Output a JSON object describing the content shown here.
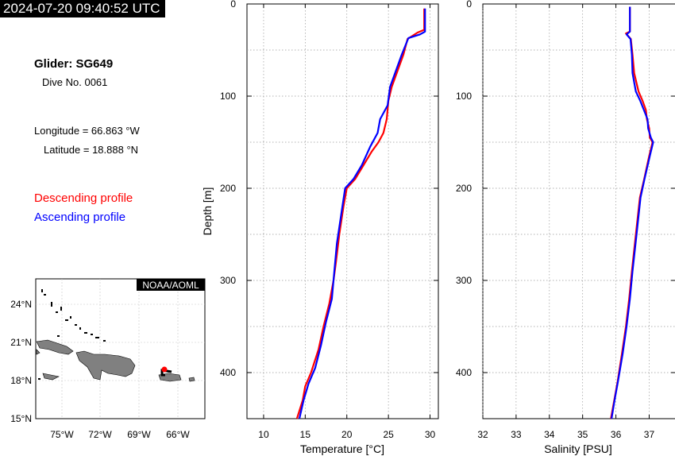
{
  "timestamp": "2024-07-20 09:40:52 UTC",
  "info": {
    "glider": "Glider: SG649",
    "dive": "Dive No. 0061",
    "longitude": "Longitude = 66.863 °W",
    "latitude": "Latitude = 18.888 °N"
  },
  "legend": {
    "descending": "Descending profile",
    "ascending": "Ascending profile"
  },
  "colors": {
    "descending": "#ff0000",
    "ascending": "#0000ff",
    "land": "#808080",
    "position": "#ff0000",
    "track": "#000000"
  },
  "map": {
    "badge": "NOAA/AOML",
    "lat_ticks": [
      "24°N",
      "21°N",
      "18°N",
      "15°N"
    ],
    "lon_ticks": [
      "75°W",
      "72°W",
      "69°W",
      "66°W"
    ]
  },
  "chart_data": [
    {
      "type": "line",
      "title": "",
      "xlabel": "Temperature [°C]",
      "ylabel": "Depth [m]",
      "xlim": [
        8,
        31
      ],
      "ylim": [
        450,
        0
      ],
      "xticks": [
        10,
        15,
        20,
        25,
        30
      ],
      "yticks": [
        0,
        100,
        200,
        300,
        400
      ],
      "grid": true,
      "series": [
        {
          "name": "Descending profile",
          "color": "#ff0000",
          "x": [
            29.3,
            29.3,
            28.5,
            27.3,
            26.8,
            26.0,
            25.4,
            25.0,
            24.8,
            24.4,
            23.8,
            23.0,
            22.0,
            21.0,
            20.0,
            19.6,
            19.1,
            18.7,
            18.4,
            17.9,
            17.2,
            16.6,
            15.7,
            15.0,
            14.7,
            14.0
          ],
          "y": [
            5,
            28,
            31,
            38,
            55,
            75,
            90,
            105,
            125,
            140,
            150,
            160,
            175,
            190,
            200,
            220,
            250,
            280,
            300,
            325,
            350,
            375,
            400,
            415,
            430,
            450
          ]
        },
        {
          "name": "Ascending profile",
          "color": "#0000ff",
          "x": [
            29.4,
            29.4,
            28.8,
            27.4,
            26.6,
            25.8,
            25.2,
            24.9,
            24.0,
            23.7,
            22.8,
            21.8,
            20.8,
            19.8,
            19.3,
            18.8,
            18.5,
            18.2,
            17.5,
            16.9,
            16.2,
            15.4,
            14.8,
            14.3
          ],
          "y": [
            5,
            30,
            33,
            37,
            55,
            75,
            90,
            110,
            125,
            140,
            155,
            175,
            190,
            200,
            230,
            260,
            290,
            320,
            345,
            370,
            395,
            412,
            430,
            450
          ]
        }
      ]
    },
    {
      "type": "line",
      "title": "",
      "xlabel": "Salinity [PSU]",
      "ylabel": "",
      "xlim": [
        32,
        37.8
      ],
      "ylim": [
        450,
        0
      ],
      "xticks": [
        32,
        33,
        34,
        35,
        36,
        37
      ],
      "yticks": [
        0,
        100,
        200,
        300,
        400
      ],
      "grid": true,
      "series": [
        {
          "name": "Descending profile",
          "color": "#ff0000",
          "x": [
            36.42,
            36.42,
            36.3,
            36.45,
            36.5,
            36.55,
            36.68,
            36.8,
            36.9,
            36.93,
            37.0,
            37.02,
            37.1,
            37.0,
            36.85,
            36.72,
            36.6,
            36.48,
            36.4,
            36.3,
            36.18,
            36.05,
            35.95,
            35.85
          ],
          "y": [
            3,
            30,
            32,
            38,
            55,
            75,
            95,
            105,
            115,
            125,
            135,
            145,
            150,
            165,
            190,
            210,
            250,
            290,
            320,
            350,
            380,
            410,
            430,
            450
          ]
        },
        {
          "name": "Ascending profile",
          "color": "#0000ff",
          "x": [
            36.42,
            36.42,
            36.32,
            36.44,
            36.48,
            36.5,
            36.6,
            36.73,
            36.84,
            36.95,
            36.97,
            37.05,
            37.12,
            37.02,
            36.86,
            36.74,
            36.62,
            36.5,
            36.42,
            36.32,
            36.2,
            36.06,
            35.96,
            35.87
          ],
          "y": [
            3,
            30,
            33,
            38,
            55,
            75,
            95,
            105,
            115,
            125,
            135,
            145,
            150,
            165,
            190,
            210,
            250,
            290,
            320,
            350,
            380,
            410,
            430,
            450
          ]
        }
      ]
    }
  ]
}
